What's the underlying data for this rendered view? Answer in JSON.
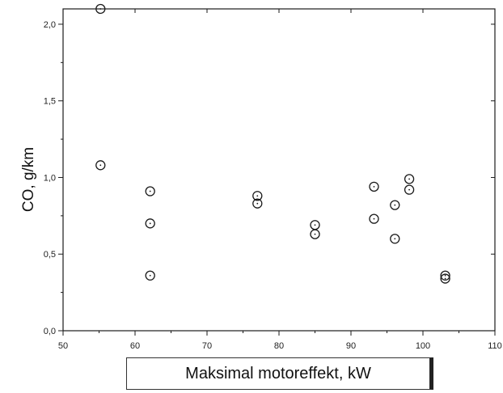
{
  "chart_data": {
    "type": "scatter",
    "title": "",
    "xlabel": "Maksimal motoreffekt, kW",
    "ylabel": "CO, g/km",
    "xlim": [
      50,
      110
    ],
    "ylim": [
      0,
      2.1
    ],
    "x_ticks": [
      50,
      60,
      70,
      80,
      90,
      100,
      110
    ],
    "x_tick_labels": [
      "50",
      "60",
      "70",
      "80",
      "90",
      "100",
      "110"
    ],
    "y_ticks": [
      0,
      0.5,
      1.0,
      1.5,
      2.0
    ],
    "y_tick_labels": [
      "0,0",
      "0,5",
      "1,0",
      "1,5",
      "2,0"
    ],
    "grid": false,
    "marker": "open-circle",
    "color": "#1a1a1a",
    "points": [
      {
        "x": 55.2,
        "y": 2.1
      },
      {
        "x": 55.2,
        "y": 1.08
      },
      {
        "x": 62.1,
        "y": 0.91
      },
      {
        "x": 62.1,
        "y": 0.7
      },
      {
        "x": 62.1,
        "y": 0.36
      },
      {
        "x": 77.0,
        "y": 0.88
      },
      {
        "x": 77.0,
        "y": 0.83
      },
      {
        "x": 85.0,
        "y": 0.69
      },
      {
        "x": 85.0,
        "y": 0.63
      },
      {
        "x": 93.2,
        "y": 0.94
      },
      {
        "x": 93.2,
        "y": 0.73
      },
      {
        "x": 96.1,
        "y": 0.82
      },
      {
        "x": 96.1,
        "y": 0.6
      },
      {
        "x": 98.1,
        "y": 0.99
      },
      {
        "x": 98.1,
        "y": 0.92
      },
      {
        "x": 103.1,
        "y": 0.36
      },
      {
        "x": 103.1,
        "y": 0.34
      }
    ]
  }
}
